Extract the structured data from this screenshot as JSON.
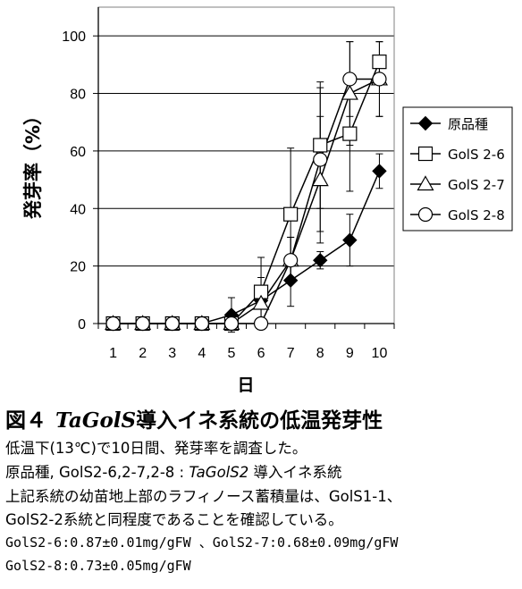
{
  "chart_data": {
    "type": "line",
    "xlabel": "日",
    "ylabel": "発芽率（%）",
    "x": [
      1,
      2,
      3,
      4,
      5,
      6,
      7,
      8,
      9,
      10
    ],
    "ylim": [
      0,
      110
    ],
    "yticks": [
      0,
      20,
      40,
      60,
      80,
      100
    ],
    "grid": true,
    "legend_position": "right",
    "series": [
      {
        "name": "原品種",
        "marker": "diamond-filled",
        "values": [
          0,
          0,
          0,
          0,
          3,
          8,
          15,
          22,
          29,
          53
        ],
        "err": [
          0,
          0,
          0,
          0,
          6,
          8,
          9,
          3,
          9,
          6
        ]
      },
      {
        "name": "GolS 2-6",
        "marker": "square-open",
        "values": [
          0,
          0,
          0,
          0,
          0,
          11,
          38,
          62,
          66,
          91
        ],
        "err": [
          0,
          0,
          0,
          0,
          0,
          12,
          23,
          22,
          20,
          7
        ]
      },
      {
        "name": "GolS 2-7",
        "marker": "triangle-open",
        "values": [
          0,
          0,
          0,
          0,
          0,
          7,
          22,
          50,
          80,
          85
        ],
        "err": [
          0,
          0,
          0,
          0,
          0,
          6,
          8,
          22,
          18,
          13
        ]
      },
      {
        "name": "GolS 2-8",
        "marker": "circle-open",
        "values": [
          0,
          0,
          0,
          0,
          0,
          0,
          22,
          57,
          85,
          85
        ],
        "err": [
          0,
          0,
          0,
          0,
          0,
          0,
          8,
          25,
          13,
          13
        ]
      }
    ]
  },
  "figure": {
    "number": "図４",
    "title_italic": "TaGolS",
    "title_rest": "導入イネ系統の低温発芽性"
  },
  "caption": {
    "line1": "低温下(13℃)で10日間、発芽率を調査した。",
    "line2_prefix": "原品種, GolS2-6,2-7,2-8 : ",
    "line2_italic": "TaGolS2",
    "line2_suffix": " 導入イネ系統",
    "line3": "上記系統の幼苗地上部のラフィノース蓄積量は、GolS1-1、",
    "line4": "GolS2-2系統と同程度であることを確認している。",
    "line5": "GolS2-6:0.87±0.01mg/gFW 、GolS2-7:0.68±0.09mg/gFW",
    "line6": "GolS2-8:0.73±0.05mg/gFW"
  }
}
